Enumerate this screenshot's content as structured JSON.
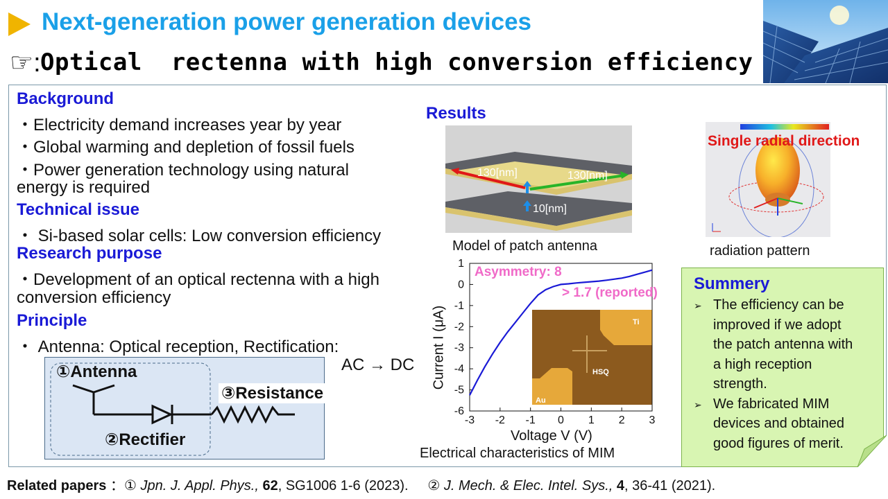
{
  "header": {
    "title": "Next-generation power generation devices",
    "subtitle_icon": "pointing-hand-icon",
    "subtitle_glyph": "☞:",
    "subtitle": "Optical  rectenna with high conversion efficiency"
  },
  "background": {
    "heading": "Background",
    "items": [
      "・Electricity demand increases year by year",
      "・Global warming and depletion of fossil fuels",
      "・Power generation technology using natural",
      "energy is required"
    ]
  },
  "technical": {
    "heading": "Technical issue",
    "items": [
      "・ Si-based solar cells: Low conversion efficiency"
    ]
  },
  "purpose": {
    "heading": "Research purpose",
    "items": [
      "・Development of an optical rectenna with a high",
      "conversion efficiency"
    ]
  },
  "principle": {
    "heading": "Principle",
    "items": [
      "・ Antenna: Optical reception, Rectification:"
    ],
    "ac_dc": "AC → DC"
  },
  "circuit": {
    "antenna": "①Antenna",
    "rectifier": "②Rectifier",
    "resistance": "③Resistance"
  },
  "results": {
    "heading": "Results",
    "patch_caption": "Model of patch antenna",
    "dim_left": "130[nm]",
    "dim_right": "130[nm]",
    "dim_thick": "10[nm]",
    "radiation_label": "Single radial direction",
    "radiation_caption": "radiation pattern",
    "mim_caption": "Electrical characteristics of MIM"
  },
  "chart_data": {
    "type": "line",
    "title": "",
    "xlabel": "Voltage V (V)",
    "ylabel": "Current I (μA)",
    "xlim": [
      -3,
      3
    ],
    "ylim": [
      -6,
      1
    ],
    "xticks": [
      -3,
      -2,
      -1,
      0,
      1,
      2,
      3
    ],
    "yticks": [
      1,
      0,
      -1,
      -2,
      -3,
      -4,
      -5,
      -6
    ],
    "annotations": [
      "Asymmetry: 8",
      "> 1.7 (reported)"
    ],
    "inset_labels": [
      "Ti",
      "HSQ",
      "Au"
    ],
    "series": [
      {
        "color": "#1a1ad6",
        "x": [
          -3.0,
          -2.75,
          -2.5,
          -2.25,
          -2.0,
          -1.75,
          -1.5,
          -1.25,
          -1.0,
          -0.75,
          -0.5,
          -0.25,
          0.0,
          0.25,
          0.5,
          0.75,
          1.0,
          1.25,
          1.5,
          1.75,
          2.0,
          2.25,
          2.5,
          2.75,
          3.0
        ],
        "y": [
          -5.25,
          -4.55,
          -3.9,
          -3.3,
          -2.75,
          -2.25,
          -1.8,
          -1.35,
          -0.9,
          -0.5,
          -0.25,
          -0.1,
          0.0,
          0.03,
          0.07,
          0.1,
          0.13,
          0.16,
          0.2,
          0.25,
          0.3,
          0.38,
          0.48,
          0.58,
          0.68
        ]
      }
    ]
  },
  "summary": {
    "heading": "Summery",
    "bullet_icon": "arrowhead-bullet-icon",
    "items": [
      [
        "The efficiency can be",
        "improved if we adopt",
        "the patch antenna with",
        "a high reception",
        "strength."
      ],
      [
        "We fabricated MIM",
        "devices and obtained",
        "good figures of merit."
      ]
    ]
  },
  "footer": {
    "label": "Related papers",
    "colon": "：",
    "ref1_num": "①",
    "ref1_journal": "Jpn. J. Appl. Phys.,",
    "ref1_vol": "62",
    "ref1_rest": ", SG1006 1-6 (2023).",
    "ref2_num": "②",
    "ref2_journal": "J. Mech. & Elec. Intel. Sys.,",
    "ref2_vol": "4",
    "ref2_rest": ", 36-41 (2021)."
  },
  "colors": {
    "title": "#1aa0e8",
    "heading": "#1a1ad6",
    "arrow": "#f0b400",
    "annotation": "#f06ac8",
    "radiation_label": "#e01818",
    "summary_bg": "#d8f5b2",
    "circuit_bg": "#dbe6f4"
  }
}
